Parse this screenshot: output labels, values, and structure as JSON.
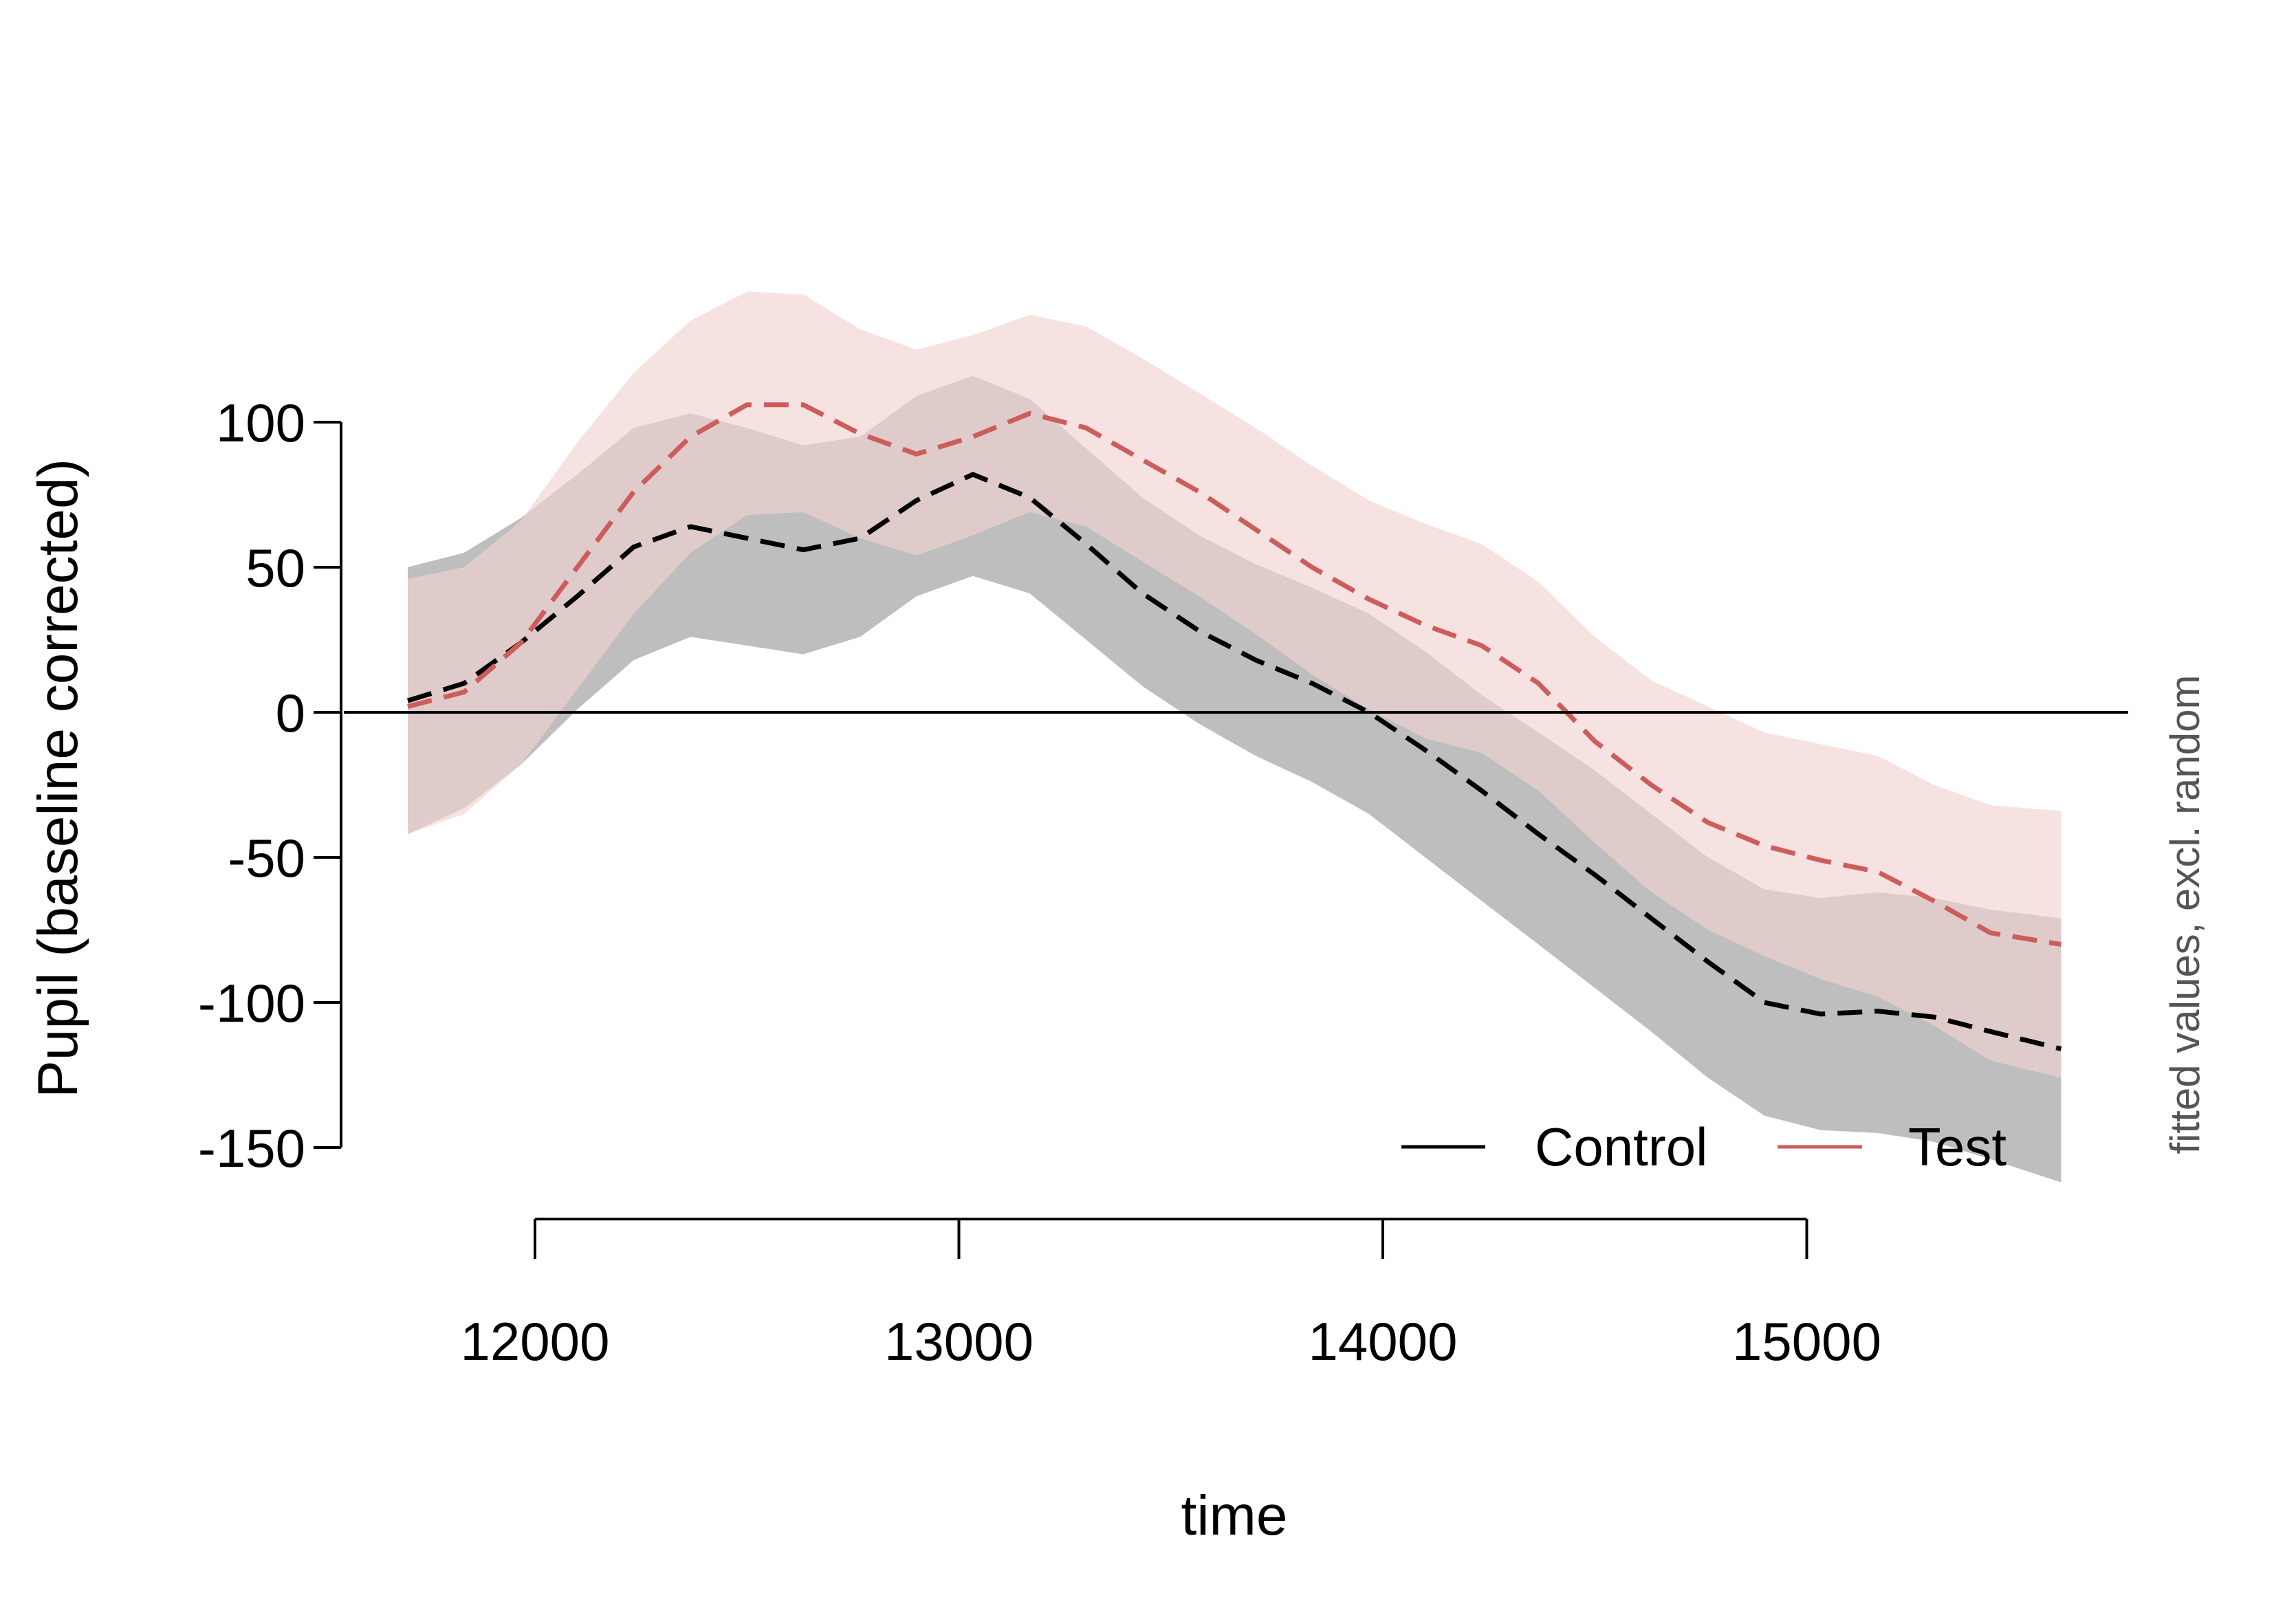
{
  "chart_data": {
    "type": "line",
    "xlabel": "time",
    "ylabel": "Pupil (baseline corrected)",
    "side_note": "fitted values, excl. random",
    "xlim": [
      11550,
      15780
    ],
    "ylim": [
      -150,
      100
    ],
    "x_ticks": [
      12000,
      13000,
      14000,
      15000
    ],
    "y_ticks": [
      -150,
      -100,
      -50,
      0,
      50,
      100
    ],
    "x_tick_labels": [
      "12000",
      "13000",
      "14000",
      "15000"
    ],
    "y_tick_labels": [
      "-150",
      "-100",
      "-50",
      "0",
      "50",
      "100"
    ],
    "reference_line": 0,
    "legend": {
      "placement": "bottom-right",
      "entries": [
        "Control",
        "Test"
      ]
    },
    "x": [
      11700,
      11833,
      11967,
      12100,
      12233,
      12367,
      12500,
      12633,
      12767,
      12900,
      13033,
      13167,
      13300,
      13433,
      13567,
      13700,
      13833,
      13967,
      14100,
      14233,
      14367,
      14500,
      14633,
      14767,
      14900,
      15033,
      15167,
      15300,
      15433,
      15600
    ],
    "series": [
      {
        "name": "Control",
        "color": "#000000",
        "band_color": "#bebebe",
        "values": [
          4,
          10,
          24,
          40,
          57,
          64,
          60,
          56,
          60,
          73,
          82,
          74,
          58,
          41,
          28,
          18,
          10,
          0,
          -13,
          -27,
          -42,
          -56,
          -71,
          -86,
          -100,
          -104,
          -103,
          -105,
          -110,
          -116
        ],
        "lower": [
          -42,
          -33,
          -18,
          1,
          18,
          26,
          23,
          20,
          26,
          40,
          47,
          41,
          25,
          9,
          -4,
          -15,
          -24,
          -35,
          -50,
          -65,
          -80,
          -95,
          -110,
          -126,
          -139,
          -144,
          -145,
          -148,
          -154,
          -162
        ],
        "upper": [
          50,
          55,
          67,
          82,
          98,
          103,
          98,
          92,
          95,
          109,
          116,
          108,
          91,
          74,
          61,
          51,
          43,
          34,
          21,
          6,
          -7,
          -20,
          -35,
          -50,
          -61,
          -64,
          -62,
          -64,
          -68,
          -71
        ]
      },
      {
        "name": "Test",
        "color": "#cd5c5c",
        "band_color": "#f2d3d3",
        "values": [
          2,
          7,
          24,
          50,
          76,
          95,
          106,
          106,
          96,
          89,
          95,
          103,
          98,
          87,
          76,
          63,
          50,
          39,
          30,
          23,
          10,
          -10,
          -25,
          -38,
          -46,
          -51,
          -55,
          -65,
          -76,
          -80
        ],
        "lower": [
          -42,
          -35,
          -18,
          8,
          34,
          55,
          68,
          69,
          60,
          54,
          61,
          69,
          64,
          52,
          40,
          27,
          13,
          1,
          -9,
          -14,
          -27,
          -45,
          -62,
          -75,
          -84,
          -92,
          -98,
          -108,
          -120,
          -126
        ],
        "upper": [
          46,
          50,
          66,
          93,
          117,
          135,
          145,
          144,
          132,
          125,
          130,
          137,
          133,
          122,
          110,
          98,
          85,
          73,
          65,
          58,
          45,
          26,
          11,
          2,
          -7,
          -11,
          -15,
          -25,
          -32,
          -34
        ]
      }
    ]
  }
}
